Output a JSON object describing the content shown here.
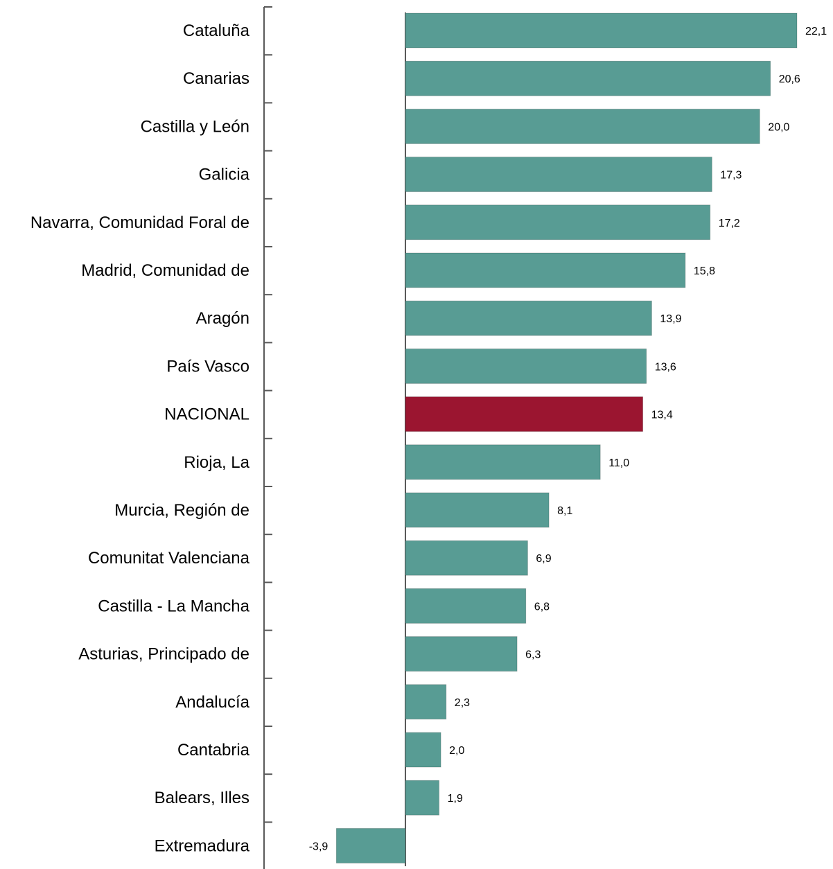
{
  "chart_data": {
    "type": "bar",
    "orientation": "horizontal",
    "categories": [
      "Cataluña",
      "Canarias",
      "Castilla y León",
      "Galicia",
      "Navarra, Comunidad Foral de",
      "Madrid, Comunidad de",
      "Aragón",
      "País Vasco",
      "NACIONAL",
      "Rioja, La",
      "Murcia, Región de",
      "Comunitat Valenciana",
      "Castilla - La Mancha",
      "Asturias, Principado de",
      "Andalucía",
      "Cantabria",
      "Balears, Illes",
      "Extremadura"
    ],
    "values": [
      22.1,
      20.6,
      20.0,
      17.3,
      17.2,
      15.8,
      13.9,
      13.6,
      13.4,
      11.0,
      8.1,
      6.9,
      6.8,
      6.3,
      2.3,
      2.0,
      1.9,
      -3.9
    ],
    "value_labels": [
      "22,1",
      "20,6",
      "20,0",
      "17,3",
      "17,2",
      "15,8",
      "13,9",
      "13,6",
      "13,4",
      "11,0",
      "8,1",
      "6,9",
      "6,8",
      "6,3",
      "2,3",
      "2,0",
      "1,9",
      "-3,9"
    ],
    "highlight_category": "NACIONAL",
    "colors": {
      "bar": "#589c94",
      "highlight": "#9b1530",
      "axis": "#595959"
    },
    "xlim": [
      -3.9,
      22.1
    ],
    "grid": false,
    "legend": "none",
    "title": "",
    "xlabel": "",
    "ylabel": ""
  }
}
